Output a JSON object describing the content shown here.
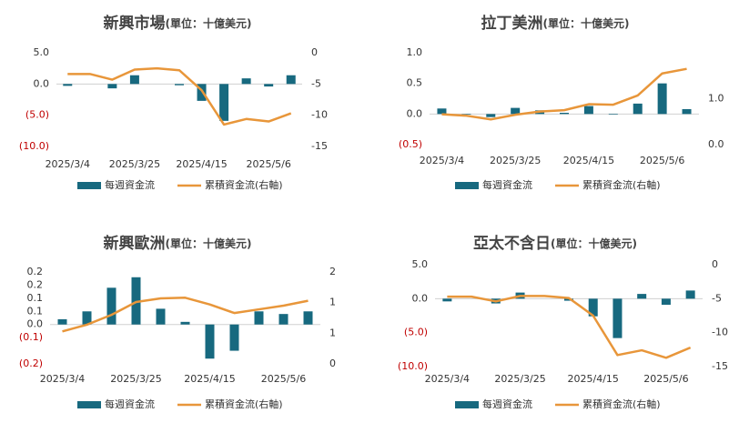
{
  "chart_data": [
    {
      "type": "combo",
      "title": "新興市場",
      "subtitle": "(單位：十億美元)",
      "negative_tick_color": "#c00000",
      "categories": [
        "2025/3/4",
        null,
        null,
        "2025/3/25",
        null,
        null,
        "2025/4/15",
        null,
        null,
        "2025/5/6",
        null
      ],
      "series": [
        {
          "name": "每週資金流",
          "color": "#17697f",
          "values": [
            -0.3,
            0.0,
            -0.7,
            1.4,
            0.0,
            -0.2,
            -2.7,
            -5.9,
            0.9,
            -0.4,
            1.4
          ]
        },
        {
          "name": "累積資金流(右軸)",
          "color": "#e8963a",
          "axis": "y2",
          "values": [
            -3.4,
            -3.4,
            -4.3,
            -2.7,
            -2.5,
            -2.8,
            -6.0,
            -11.5,
            -10.6,
            -11.0,
            -9.7
          ]
        }
      ],
      "ylim": [
        -10,
        5
      ],
      "yticks": [
        {
          "value": 5,
          "label": "5.0"
        },
        {
          "value": 0,
          "label": "0.0"
        },
        {
          "value": -5,
          "label": "(5.0)"
        },
        {
          "value": -10,
          "label": "(10.0)"
        }
      ],
      "y2lim": [
        -15,
        0
      ],
      "y2ticks": [
        0,
        -5,
        -10,
        -15
      ]
    },
    {
      "type": "combo",
      "title": "拉丁美洲",
      "subtitle": "(單位：十億美元)",
      "negative_tick_color": "#c00000",
      "categories": [
        "2025/3/4",
        null,
        null,
        "2025/3/25",
        null,
        null,
        "2025/4/15",
        null,
        null,
        "2025/5/6",
        null
      ],
      "series": [
        {
          "name": "每週資金流",
          "color": "#17697f",
          "values": [
            0.09,
            -0.01,
            -0.05,
            0.1,
            0.06,
            0.02,
            0.13,
            -0.01,
            0.17,
            0.5,
            0.08
          ]
        },
        {
          "name": "累積資金流(右軸)",
          "color": "#e8963a",
          "axis": "y2",
          "values": [
            0.66,
            0.63,
            0.55,
            0.65,
            0.72,
            0.75,
            0.88,
            0.87,
            1.07,
            1.55,
            1.65
          ]
        }
      ],
      "ylim": [
        -0.5,
        1.0
      ],
      "yticks": [
        {
          "value": 1,
          "label": "1.0"
        },
        {
          "value": 0.5,
          "label": "0.5"
        },
        {
          "value": 0,
          "label": "0.0"
        },
        {
          "value": -0.5,
          "label": "(0.5)"
        }
      ],
      "y2lim": [
        0,
        2
      ],
      "y2ticks": [
        {
          "value": 1,
          "label": "1.0"
        },
        {
          "value": 0,
          "label": "0.0"
        }
      ]
    },
    {
      "type": "combo",
      "title": "新興歐洲",
      "subtitle": "(單位：十億美元)",
      "negative_tick_color": "#c00000",
      "categories": [
        "2025/3/4",
        null,
        null,
        "2025/3/25",
        null,
        null,
        "2025/4/15",
        null,
        null,
        "2025/5/6",
        null
      ],
      "series": [
        {
          "name": "每週資金流",
          "color": "#17697f",
          "values": [
            0.02,
            0.05,
            0.14,
            0.18,
            0.06,
            0.01,
            -0.13,
            -0.1,
            0.05,
            0.04,
            0.05
          ]
        },
        {
          "name": "累積資金流(右軸)",
          "color": "#e8963a",
          "axis": "y2",
          "values": [
            0.53,
            0.64,
            0.8,
            1.01,
            1.07,
            1.08,
            0.97,
            0.83,
            0.89,
            0.95,
            1.03
          ]
        }
      ],
      "ylim": [
        -0.15,
        0.2
      ],
      "yticks": [
        {
          "value": 0.2,
          "label": "0.2"
        },
        {
          "value": 0.15,
          "label": "0.2"
        },
        {
          "value": 0.1,
          "label": "0.1"
        },
        {
          "value": 0.05,
          "label": "0.1"
        },
        {
          "value": 0,
          "label": "0.0"
        },
        {
          "value": -0.05,
          "label": "(0.1)"
        },
        {
          "value": -0.15,
          "label": "(0.2)"
        }
      ],
      "y2lim": [
        0,
        1.5
      ],
      "y2ticks": [
        {
          "value": 1.5,
          "label": "2"
        },
        {
          "value": 1,
          "label": "1"
        },
        {
          "value": 0.5,
          "label": "1"
        },
        0
      ]
    },
    {
      "type": "combo",
      "title": "亞太不含日",
      "subtitle": "(單位：十億美元)",
      "negative_tick_color": "#c00000",
      "categories": [
        "2025/3/4",
        null,
        null,
        "2025/3/25",
        null,
        null,
        "2025/4/15",
        null,
        null,
        "2025/5/6",
        null
      ],
      "series": [
        {
          "name": "每週資金流",
          "color": "#17697f",
          "values": [
            -0.4,
            0.0,
            -0.7,
            0.9,
            0.0,
            -0.3,
            -2.6,
            -5.8,
            0.7,
            -0.9,
            1.2
          ]
        },
        {
          "name": "累積資金流(右軸)",
          "color": "#e8963a",
          "axis": "y2",
          "values": [
            -4.7,
            -4.7,
            -5.4,
            -4.6,
            -4.6,
            -4.9,
            -7.5,
            -13.3,
            -12.6,
            -13.7,
            -12.2
          ]
        }
      ],
      "ylim": [
        -10,
        5
      ],
      "yticks": [
        {
          "value": 5,
          "label": "5.0"
        },
        {
          "value": 0,
          "label": "0.0"
        },
        {
          "value": -5,
          "label": "(5.0)"
        },
        {
          "value": -10,
          "label": "(10.0)"
        }
      ],
      "y2lim": [
        -15,
        0
      ],
      "y2ticks": [
        0,
        -5,
        -10,
        -15
      ]
    }
  ]
}
